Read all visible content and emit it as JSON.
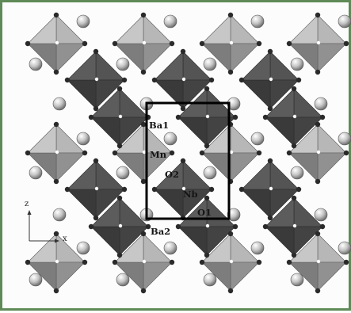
{
  "figure": {
    "atom_labels": {
      "ba1": "Ba1",
      "ba2": "Ba2",
      "mn": "Mn",
      "nb": "Nb",
      "o1": "O1",
      "o2": "O2"
    },
    "axes": {
      "vertical": "z",
      "horizontal": "x"
    },
    "colors": {
      "frame_border": "#5f8a57",
      "octahedron_light": "#a9a9a9",
      "octahedron_dark": "#4e4e4e",
      "unit_cell": "#000000",
      "ba_sphere": "#bdbdbd",
      "metal_center": "#ffffff",
      "oxygen_vertex": "#2a2a2a"
    }
  }
}
